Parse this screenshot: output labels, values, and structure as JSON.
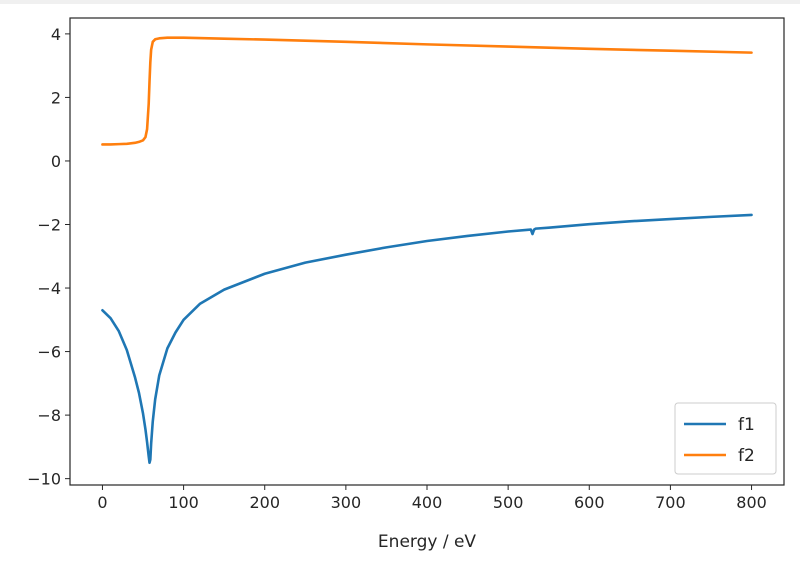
{
  "chart_data": {
    "type": "line",
    "title": "",
    "xlabel": "Energy / eV",
    "ylabel": "",
    "xlim": [
      -40,
      840
    ],
    "ylim": [
      -10.2,
      4.5
    ],
    "xticks": [
      0,
      100,
      200,
      300,
      400,
      500,
      600,
      700,
      800
    ],
    "yticks": [
      4,
      2,
      0,
      -2,
      -4,
      -6,
      -8,
      -10
    ],
    "xtick_labels": [
      "0",
      "100",
      "200",
      "300",
      "400",
      "500",
      "600",
      "700",
      "800"
    ],
    "ytick_labels": [
      "4",
      "2",
      "0",
      "−2",
      "−4",
      "−6",
      "−8",
      "−10"
    ],
    "grid": false,
    "legend_position": "lower-right",
    "series": [
      {
        "name": "f1",
        "color": "#1f77b4",
        "x": [
          0,
          10,
          20,
          30,
          40,
          45,
          50,
          53,
          55,
          57,
          58,
          59,
          60,
          62,
          65,
          70,
          80,
          90,
          100,
          120,
          150,
          200,
          250,
          300,
          350,
          400,
          450,
          500,
          528,
          530,
          532,
          534,
          550,
          600,
          650,
          700,
          750,
          800
        ],
        "values": [
          -4.7,
          -4.95,
          -5.35,
          -5.95,
          -6.8,
          -7.3,
          -7.95,
          -8.45,
          -8.85,
          -9.3,
          -9.5,
          -9.4,
          -8.9,
          -8.2,
          -7.5,
          -6.75,
          -5.9,
          -5.4,
          -5.0,
          -4.5,
          -4.05,
          -3.55,
          -3.2,
          -2.95,
          -2.72,
          -2.52,
          -2.36,
          -2.22,
          -2.16,
          -2.3,
          -2.16,
          -2.13,
          -2.1,
          -1.99,
          -1.9,
          -1.83,
          -1.76,
          -1.7
        ]
      },
      {
        "name": "f2",
        "color": "#ff7f0e",
        "x": [
          0,
          10,
          20,
          30,
          40,
          45,
          50,
          53,
          55,
          57,
          58,
          59,
          60,
          62,
          65,
          70,
          80,
          90,
          100,
          150,
          200,
          300,
          400,
          500,
          600,
          700,
          800
        ],
        "values": [
          0.52,
          0.52,
          0.53,
          0.54,
          0.57,
          0.6,
          0.65,
          0.75,
          1.0,
          1.8,
          2.5,
          3.1,
          3.5,
          3.75,
          3.83,
          3.86,
          3.88,
          3.88,
          3.88,
          3.85,
          3.82,
          3.75,
          3.67,
          3.6,
          3.53,
          3.47,
          3.41
        ]
      }
    ]
  }
}
